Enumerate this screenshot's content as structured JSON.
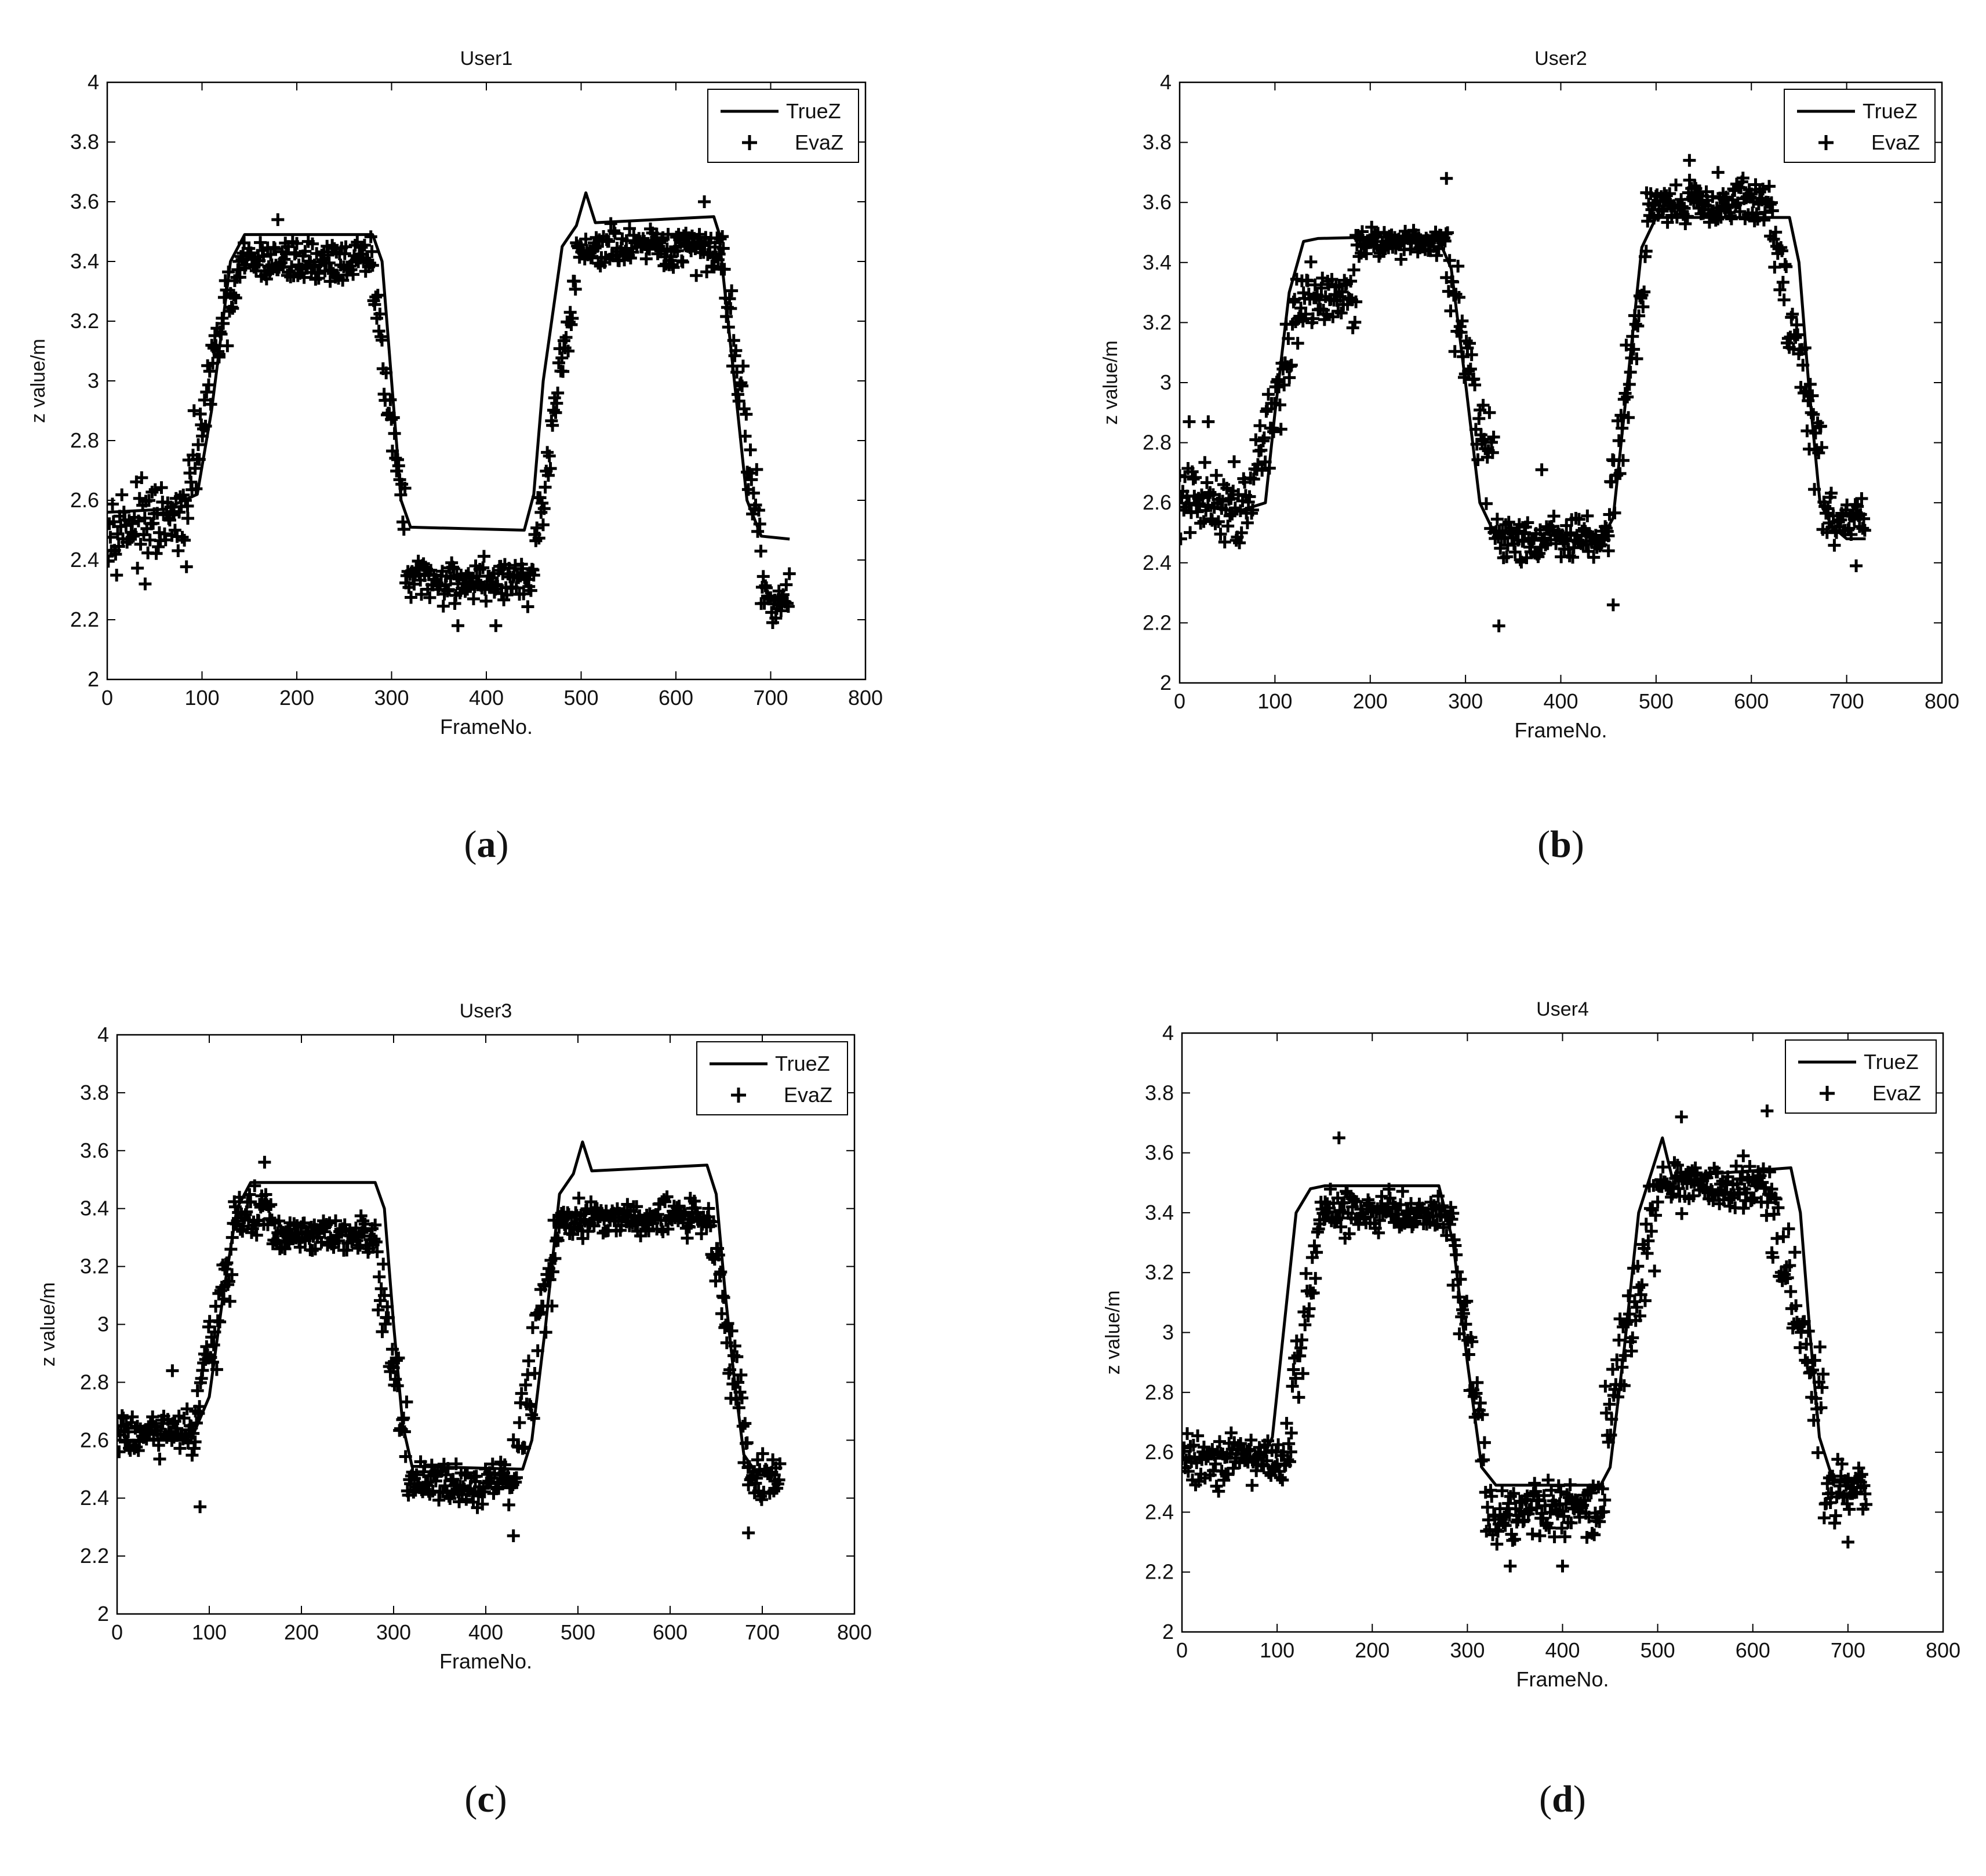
{
  "colors": {
    "line": "#000000",
    "marker": "#000000",
    "frame": "#000000",
    "background": "#ffffff"
  },
  "chart_data": [
    {
      "panel": "(a)",
      "type": "line",
      "title": "User1",
      "xlabel": "FrameNo.",
      "ylabel": "z value/m",
      "xlim": [
        0,
        800
      ],
      "ylim": [
        2,
        4
      ],
      "xticks": [
        "0",
        "100",
        "200",
        "300",
        "400",
        "500",
        "600",
        "700",
        "800"
      ],
      "yticks": [
        "2",
        "2.2",
        "2.4",
        "2.6",
        "2.8",
        "3",
        "3.2",
        "3.4",
        "3.6",
        "3.8",
        "4"
      ],
      "legend": {
        "position": "top-right",
        "entries": [
          "TrueZ",
          "EvaZ"
        ]
      },
      "series": [
        {
          "name": "TrueZ",
          "style": "line",
          "x": [
            0,
            60,
            95,
            110,
            130,
            145,
            280,
            290,
            300,
            310,
            320,
            440,
            450,
            460,
            480,
            495,
            505,
            515,
            640,
            645,
            655,
            665,
            675,
            690,
            720
          ],
          "y": [
            2.56,
            2.57,
            2.62,
            2.9,
            3.4,
            3.49,
            3.49,
            3.4,
            3.0,
            2.6,
            2.51,
            2.5,
            2.62,
            3.0,
            3.45,
            3.52,
            3.63,
            3.53,
            3.55,
            3.5,
            3.2,
            2.9,
            2.6,
            2.48,
            2.47
          ]
        },
        {
          "name": "EvaZ",
          "style": "markers",
          "segments": [
            {
              "x0": 0,
              "x1": 85,
              "base": 2.52,
              "spread": 0.13
            },
            {
              "x0": 85,
              "x1": 118,
              "base0": 2.6,
              "base1": 3.15,
              "spread": 0.15
            },
            {
              "x0": 118,
              "x1": 145,
              "base0": 3.15,
              "base1": 3.4,
              "spread": 0.12
            },
            {
              "x0": 145,
              "x1": 280,
              "base": 3.4,
              "spread": 0.08
            },
            {
              "x0": 280,
              "x1": 315,
              "base0": 3.35,
              "base1": 2.5,
              "spread": 0.12
            },
            {
              "x0": 315,
              "x1": 450,
              "base": 2.33,
              "spread": 0.08
            },
            {
              "x0": 450,
              "x1": 495,
              "base0": 2.4,
              "base1": 3.35,
              "spread": 0.12
            },
            {
              "x0": 495,
              "x1": 650,
              "base": 3.44,
              "spread": 0.08
            },
            {
              "x0": 650,
              "x1": 690,
              "base0": 3.4,
              "base1": 2.45,
              "spread": 0.14
            },
            {
              "x0": 690,
              "x1": 720,
              "base": 2.27,
              "spread": 0.08
            }
          ],
          "outliers": [
            [
              180,
              3.54
            ],
            [
              630,
              3.6
            ],
            [
              370,
              2.18
            ],
            [
              410,
              2.18
            ],
            [
              40,
              2.32
            ]
          ]
        }
      ]
    },
    {
      "panel": "(b)",
      "type": "line",
      "title": "User2",
      "xlabel": "FrameNo.",
      "ylabel": "z value/m",
      "xlim": [
        0,
        800
      ],
      "ylim": [
        2,
        4
      ],
      "xticks": [
        "0",
        "100",
        "200",
        "300",
        "400",
        "500",
        "600",
        "700",
        "800"
      ],
      "yticks": [
        "2",
        "2.2",
        "2.4",
        "2.6",
        "2.8",
        "3",
        "3.2",
        "3.4",
        "3.6",
        "3.8",
        "4"
      ],
      "legend": {
        "position": "top-right",
        "entries": [
          "TrueZ",
          "EvaZ"
        ]
      },
      "series": [
        {
          "name": "TrueZ",
          "style": "line",
          "x": [
            0,
            60,
            90,
            100,
            115,
            130,
            145,
            270,
            285,
            300,
            315,
            330,
            445,
            455,
            470,
            485,
            500,
            640,
            650,
            660,
            672,
            685,
            700,
            720
          ],
          "y": [
            2.6,
            2.57,
            2.6,
            2.9,
            3.3,
            3.47,
            3.48,
            3.49,
            3.38,
            3.0,
            2.6,
            2.5,
            2.49,
            2.55,
            3.0,
            3.45,
            3.55,
            3.55,
            3.4,
            3.0,
            2.6,
            2.52,
            2.48,
            2.48
          ]
        },
        {
          "name": "EvaZ",
          "style": "markers",
          "segments": [
            {
              "x0": 0,
              "x1": 70,
              "base": 2.6,
              "spread": 0.14
            },
            {
              "x0": 70,
              "x1": 130,
              "base0": 2.62,
              "base1": 3.25,
              "spread": 0.16
            },
            {
              "x0": 130,
              "x1": 185,
              "base": 3.28,
              "spread": 0.1
            },
            {
              "x0": 185,
              "x1": 280,
              "base": 3.47,
              "spread": 0.05
            },
            {
              "x0": 280,
              "x1": 330,
              "base0": 3.45,
              "base1": 2.65,
              "spread": 0.18
            },
            {
              "x0": 330,
              "x1": 450,
              "base": 2.48,
              "spread": 0.08
            },
            {
              "x0": 450,
              "x1": 490,
              "base0": 2.55,
              "base1": 3.4,
              "spread": 0.16
            },
            {
              "x0": 490,
              "x1": 620,
              "base": 3.6,
              "spread": 0.08
            },
            {
              "x0": 620,
              "x1": 675,
              "base0": 3.55,
              "base1": 2.7,
              "spread": 0.18
            },
            {
              "x0": 675,
              "x1": 720,
              "base": 2.55,
              "spread": 0.09
            }
          ],
          "outliers": [
            [
              280,
              3.68
            ],
            [
              380,
              2.71
            ],
            [
              535,
              3.74
            ],
            [
              565,
              3.7
            ],
            [
              710,
              2.39
            ],
            [
              10,
              2.87
            ],
            [
              30,
              2.87
            ],
            [
              455,
              2.26
            ],
            [
              335,
              2.19
            ]
          ]
        }
      ]
    },
    {
      "panel": "(c)",
      "type": "line",
      "title": "User3",
      "xlabel": "FrameNo.",
      "ylabel": "z value/m",
      "xlim": [
        0,
        800
      ],
      "ylim": [
        2,
        4
      ],
      "xticks": [
        "0",
        "100",
        "200",
        "300",
        "400",
        "500",
        "600",
        "700",
        "800"
      ],
      "yticks": [
        "2",
        "2.2",
        "2.4",
        "2.6",
        "2.8",
        "3",
        "3.2",
        "3.4",
        "3.6",
        "3.8",
        "4"
      ],
      "legend": {
        "position": "top-right",
        "entries": [
          "TrueZ",
          "EvaZ"
        ]
      },
      "series": [
        {
          "name": "TrueZ",
          "style": "line",
          "x": [
            0,
            80,
            100,
            115,
            130,
            145,
            280,
            290,
            300,
            310,
            320,
            440,
            450,
            465,
            480,
            495,
            505,
            515,
            640,
            650,
            660,
            670,
            680,
            695,
            720
          ],
          "y": [
            2.6,
            2.6,
            2.75,
            3.1,
            3.4,
            3.49,
            3.49,
            3.4,
            3.0,
            2.65,
            2.51,
            2.5,
            2.6,
            3.0,
            3.45,
            3.52,
            3.63,
            3.53,
            3.55,
            3.45,
            3.1,
            2.8,
            2.55,
            2.48,
            2.48
          ]
        },
        {
          "name": "EvaZ",
          "style": "markers",
          "segments": [
            {
              "x0": 0,
              "x1": 85,
              "base": 2.62,
              "spread": 0.09
            },
            {
              "x0": 85,
              "x1": 125,
              "base0": 2.65,
              "base1": 3.25,
              "spread": 0.16
            },
            {
              "x0": 125,
              "x1": 170,
              "base": 3.38,
              "spread": 0.09
            },
            {
              "x0": 170,
              "x1": 280,
              "base": 3.3,
              "spread": 0.07
            },
            {
              "x0": 280,
              "x1": 315,
              "base0": 3.25,
              "base1": 2.55,
              "spread": 0.15
            },
            {
              "x0": 315,
              "x1": 430,
              "base": 2.45,
              "spread": 0.07
            },
            {
              "x0": 430,
              "x1": 480,
              "base0": 2.5,
              "base1": 3.35,
              "spread": 0.2
            },
            {
              "x0": 480,
              "x1": 645,
              "base": 3.37,
              "spread": 0.07
            },
            {
              "x0": 645,
              "x1": 685,
              "base0": 3.3,
              "base1": 2.55,
              "spread": 0.15
            },
            {
              "x0": 685,
              "x1": 720,
              "base": 2.48,
              "spread": 0.09
            }
          ],
          "outliers": [
            [
              160,
              3.56
            ],
            [
              90,
              2.37
            ],
            [
              430,
              2.27
            ],
            [
              685,
              2.28
            ],
            [
              60,
              2.84
            ]
          ]
        }
      ]
    },
    {
      "panel": "(d)",
      "type": "line",
      "title": "User4",
      "xlabel": "FrameNo.",
      "ylabel": "z value/m",
      "xlim": [
        0,
        800
      ],
      "ylim": [
        2,
        4
      ],
      "xticks": [
        "0",
        "100",
        "200",
        "300",
        "400",
        "500",
        "600",
        "700",
        "800"
      ],
      "yticks": [
        "2",
        "2.2",
        "2.4",
        "2.6",
        "2.8",
        "3",
        "3.2",
        "3.4",
        "3.6",
        "3.8",
        "4"
      ],
      "legend": {
        "position": "top-right",
        "entries": [
          "TrueZ",
          "EvaZ"
        ]
      },
      "series": [
        {
          "name": "TrueZ",
          "style": "line",
          "x": [
            0,
            85,
            95,
            105,
            120,
            135,
            150,
            270,
            285,
            300,
            315,
            330,
            440,
            450,
            465,
            480,
            495,
            505,
            515,
            640,
            650,
            660,
            670,
            685,
            720
          ],
          "y": [
            2.58,
            2.58,
            2.65,
            2.95,
            3.4,
            3.48,
            3.49,
            3.49,
            3.3,
            2.9,
            2.55,
            2.49,
            2.49,
            2.55,
            2.95,
            3.4,
            3.55,
            3.65,
            3.52,
            3.55,
            3.4,
            3.0,
            2.65,
            2.5,
            2.5
          ]
        },
        {
          "name": "EvaZ",
          "style": "markers",
          "segments": [
            {
              "x0": 0,
              "x1": 115,
              "base": 2.58,
              "spread": 0.1
            },
            {
              "x0": 115,
              "x1": 145,
              "base0": 2.8,
              "base1": 3.3,
              "spread": 0.16
            },
            {
              "x0": 145,
              "x1": 285,
              "base": 3.4,
              "spread": 0.08
            },
            {
              "x0": 285,
              "x1": 320,
              "base0": 3.3,
              "base1": 2.55,
              "spread": 0.16
            },
            {
              "x0": 320,
              "x1": 445,
              "base": 2.4,
              "spread": 0.1
            },
            {
              "x0": 445,
              "x1": 500,
              "base0": 2.7,
              "base1": 3.45,
              "spread": 0.2
            },
            {
              "x0": 500,
              "x1": 620,
              "base": 3.48,
              "spread": 0.08
            },
            {
              "x0": 620,
              "x1": 675,
              "base0": 3.4,
              "base1": 2.7,
              "spread": 0.18
            },
            {
              "x0": 675,
              "x1": 720,
              "base": 2.48,
              "spread": 0.1
            }
          ],
          "outliers": [
            [
              165,
              3.65
            ],
            [
              525,
              3.72
            ],
            [
              615,
              3.74
            ],
            [
              400,
              2.22
            ],
            [
              345,
              2.22
            ],
            [
              700,
              2.3
            ],
            [
              590,
              3.59
            ]
          ]
        }
      ]
    }
  ]
}
